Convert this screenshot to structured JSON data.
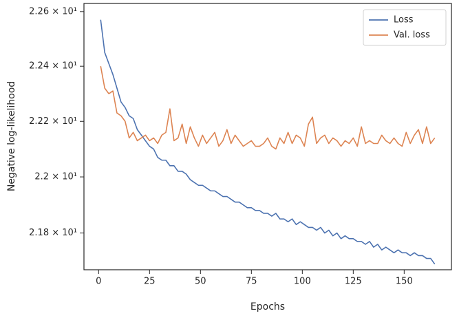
{
  "chart_data": {
    "type": "line",
    "xlabel": "Epochs",
    "ylabel": "Negative log-likelihood",
    "yscale": "log",
    "legend": "upper right",
    "xlim": [
      -7.2,
      173.2
    ],
    "xticks": [
      0,
      25,
      50,
      75,
      100,
      125,
      150
    ],
    "ylim": [
      21.67,
      22.63
    ],
    "yticks": [
      {
        "value": 21.8,
        "label": "2.18 × 10¹"
      },
      {
        "value": 22.0,
        "label": "2.2 × 10¹"
      },
      {
        "value": 22.2,
        "label": "2.22 × 10¹"
      },
      {
        "value": 22.4,
        "label": "2.24 × 10¹"
      },
      {
        "value": 22.6,
        "label": "2.26 × 10¹"
      }
    ],
    "x": [
      1,
      3,
      5,
      7,
      9,
      11,
      13,
      15,
      17,
      19,
      21,
      23,
      25,
      27,
      29,
      31,
      33,
      35,
      37,
      39,
      41,
      43,
      45,
      47,
      49,
      51,
      53,
      55,
      57,
      59,
      61,
      63,
      65,
      67,
      69,
      71,
      73,
      75,
      77,
      79,
      81,
      83,
      85,
      87,
      89,
      91,
      93,
      95,
      97,
      99,
      101,
      103,
      105,
      107,
      109,
      111,
      113,
      115,
      117,
      119,
      121,
      123,
      125,
      127,
      129,
      131,
      133,
      135,
      137,
      139,
      141,
      143,
      145,
      147,
      149,
      151,
      153,
      155,
      157,
      159,
      161,
      163,
      165
    ],
    "series": [
      {
        "name": "Loss",
        "color": "#4c72b0",
        "values": [
          22.57,
          22.45,
          22.41,
          22.37,
          22.32,
          22.27,
          22.25,
          22.22,
          22.21,
          22.17,
          22.15,
          22.13,
          22.11,
          22.1,
          22.07,
          22.06,
          22.06,
          22.04,
          22.04,
          22.02,
          22.02,
          22.01,
          21.99,
          21.98,
          21.97,
          21.97,
          21.96,
          21.95,
          21.95,
          21.94,
          21.93,
          21.93,
          21.92,
          21.91,
          21.91,
          21.9,
          21.89,
          21.89,
          21.88,
          21.88,
          21.87,
          21.87,
          21.86,
          21.87,
          21.85,
          21.85,
          21.84,
          21.85,
          21.83,
          21.84,
          21.83,
          21.82,
          21.82,
          21.81,
          21.82,
          21.8,
          21.81,
          21.79,
          21.8,
          21.78,
          21.79,
          21.78,
          21.78,
          21.77,
          21.77,
          21.76,
          21.77,
          21.75,
          21.76,
          21.74,
          21.75,
          21.74,
          21.73,
          21.74,
          21.73,
          21.73,
          21.72,
          21.73,
          21.72,
          21.72,
          21.71,
          21.71,
          21.69
        ]
      },
      {
        "name": "Val. loss",
        "color": "#dd8452",
        "values": [
          22.4,
          22.32,
          22.3,
          22.31,
          22.23,
          22.22,
          22.2,
          22.14,
          22.16,
          22.13,
          22.14,
          22.15,
          22.13,
          22.14,
          22.12,
          22.15,
          22.16,
          22.245,
          22.13,
          22.14,
          22.19,
          22.12,
          22.18,
          22.14,
          22.11,
          22.15,
          22.12,
          22.14,
          22.16,
          22.11,
          22.13,
          22.17,
          22.12,
          22.15,
          22.13,
          22.11,
          22.12,
          22.13,
          22.11,
          22.11,
          22.12,
          22.14,
          22.11,
          22.1,
          22.14,
          22.12,
          22.16,
          22.12,
          22.15,
          22.14,
          22.11,
          22.19,
          22.215,
          22.12,
          22.14,
          22.15,
          22.12,
          22.14,
          22.13,
          22.11,
          22.13,
          22.12,
          22.14,
          22.11,
          22.18,
          22.12,
          22.13,
          22.12,
          22.12,
          22.15,
          22.13,
          22.12,
          22.14,
          22.12,
          22.11,
          22.16,
          22.12,
          22.15,
          22.17,
          22.12,
          22.18,
          22.12,
          22.14
        ]
      }
    ]
  }
}
